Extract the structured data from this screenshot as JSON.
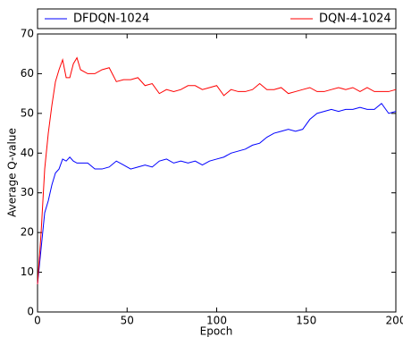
{
  "chart_data": {
    "type": "line",
    "xlabel": "Epoch",
    "ylabel": "Average Q-value",
    "x": [
      0,
      2,
      4,
      6,
      8,
      10,
      12,
      14,
      16,
      18,
      20,
      22,
      24,
      28,
      32,
      36,
      40,
      44,
      48,
      52,
      56,
      60,
      64,
      68,
      72,
      76,
      80,
      84,
      88,
      92,
      96,
      100,
      104,
      108,
      112,
      116,
      120,
      124,
      128,
      132,
      136,
      140,
      144,
      148,
      152,
      156,
      160,
      164,
      168,
      172,
      176,
      180,
      184,
      188,
      192,
      196,
      200
    ],
    "series": [
      {
        "name": "DFDQN-1024",
        "color": "#0000ff",
        "values": [
          7,
          16,
          25,
          28,
          32,
          35,
          36,
          38.5,
          38,
          39,
          38,
          37.5,
          37.5,
          37.5,
          36,
          36,
          36.5,
          38,
          37,
          36,
          36.5,
          37,
          36.5,
          38,
          38.5,
          37.5,
          38,
          37.5,
          38,
          37,
          38,
          38.5,
          39,
          40,
          40.5,
          41,
          42,
          42.5,
          44,
          45,
          45.5,
          46,
          45.5,
          46,
          48.5,
          50,
          50.5,
          51,
          50.5,
          51,
          51,
          51.5,
          51,
          51,
          52.5,
          50,
          50.5
        ]
      },
      {
        "name": "DQN-4-1024",
        "color": "#ff0000",
        "values": [
          7,
          20,
          36,
          45,
          52,
          58,
          61,
          63.5,
          59,
          59,
          62.5,
          64,
          61,
          60,
          60,
          61,
          61.5,
          58,
          58.5,
          58.5,
          59,
          57,
          57.5,
          55,
          56,
          55.5,
          56,
          57,
          57,
          56,
          56.5,
          57,
          54.5,
          56,
          55.5,
          55.5,
          56,
          57.5,
          56,
          56,
          56.5,
          55,
          55.5,
          56,
          56.5,
          55.5,
          55.5,
          56,
          56.5,
          56,
          56.5,
          55.5,
          56.5,
          55.5,
          55.5,
          55.5,
          56
        ]
      }
    ],
    "xlim": [
      0,
      200
    ],
    "xticks": [
      0,
      50,
      100,
      150,
      200
    ],
    "ylim": [
      0,
      70
    ],
    "yticks": [
      0,
      10,
      20,
      30,
      40,
      50,
      60,
      70
    ],
    "legend": "top"
  }
}
